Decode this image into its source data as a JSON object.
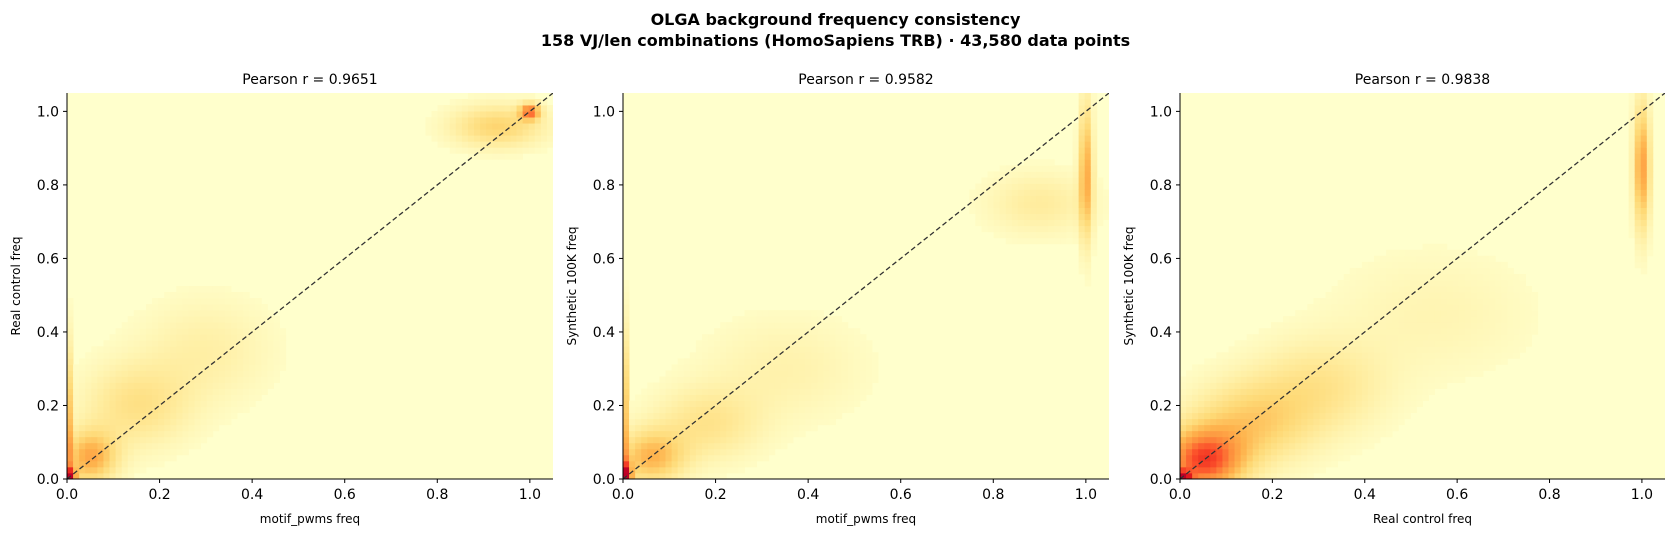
{
  "figure": {
    "title_line1": "OLGA background frequency consistency",
    "title_line2": "158 VJ/len combinations (HomoSapiens TRB)  ·  43,580 data points"
  },
  "chart_data": [
    {
      "type": "heatmap",
      "title": "Pearson r = 0.9651",
      "xlabel": "motif_pwms freq",
      "ylabel": "Real control freq",
      "xlim": [
        0,
        1.05
      ],
      "ylim": [
        0,
        1.05
      ],
      "xticks": [
        "0.0",
        "0.2",
        "0.4",
        "0.6",
        "0.8",
        "1.0"
      ],
      "yticks": [
        "0.0",
        "0.2",
        "0.4",
        "0.6",
        "0.8",
        "1.0"
      ],
      "diagonal_reference": true,
      "density_regions": [
        {
          "x": 0.0,
          "y": 0.0,
          "x_spread": 0.012,
          "y_spread": 0.02,
          "intensity": 1.0
        },
        {
          "x": 0.0,
          "y": 0.15,
          "x_spread": 0.006,
          "y_spread": 0.15,
          "intensity": 0.55
        },
        {
          "x": 0.05,
          "y": 0.06,
          "x_spread": 0.04,
          "y_spread": 0.05,
          "intensity": 0.45
        },
        {
          "x": 0.15,
          "y": 0.2,
          "x_spread": 0.08,
          "y_spread": 0.08,
          "intensity": 0.22
        },
        {
          "x": 0.3,
          "y": 0.35,
          "x_spread": 0.1,
          "y_spread": 0.1,
          "intensity": 0.12
        },
        {
          "x": 0.93,
          "y": 0.96,
          "x_spread": 0.07,
          "y_spread": 0.04,
          "intensity": 0.3
        },
        {
          "x": 1.0,
          "y": 1.0,
          "x_spread": 0.015,
          "y_spread": 0.015,
          "intensity": 0.6
        }
      ]
    },
    {
      "type": "heatmap",
      "title": "Pearson r = 0.9582",
      "xlabel": "motif_pwms freq",
      "ylabel": "Synthetic 100K freq",
      "xlim": [
        0,
        1.05
      ],
      "ylim": [
        0,
        1.05
      ],
      "xticks": [
        "0.0",
        "0.2",
        "0.4",
        "0.6",
        "0.8",
        "1.0"
      ],
      "yticks": [
        "0.0",
        "0.2",
        "0.4",
        "0.6",
        "0.8",
        "1.0"
      ],
      "diagonal_reference": true,
      "density_regions": [
        {
          "x": 0.0,
          "y": 0.0,
          "x_spread": 0.012,
          "y_spread": 0.03,
          "intensity": 1.0
        },
        {
          "x": 0.0,
          "y": 0.18,
          "x_spread": 0.006,
          "y_spread": 0.16,
          "intensity": 0.55
        },
        {
          "x": 0.06,
          "y": 0.06,
          "x_spread": 0.05,
          "y_spread": 0.05,
          "intensity": 0.4
        },
        {
          "x": 0.18,
          "y": 0.15,
          "x_spread": 0.08,
          "y_spread": 0.07,
          "intensity": 0.2
        },
        {
          "x": 0.35,
          "y": 0.3,
          "x_spread": 0.12,
          "y_spread": 0.1,
          "intensity": 0.1
        },
        {
          "x": 1.0,
          "y": 0.84,
          "x_spread": 0.01,
          "y_spread": 0.13,
          "intensity": 0.45
        },
        {
          "x": 0.9,
          "y": 0.75,
          "x_spread": 0.08,
          "y_spread": 0.06,
          "intensity": 0.15
        }
      ]
    },
    {
      "type": "heatmap",
      "title": "Pearson r = 0.9838",
      "xlabel": "Real control freq",
      "ylabel": "Synthetic 100K freq",
      "xlim": [
        0,
        1.05
      ],
      "ylim": [
        0,
        1.05
      ],
      "xticks": [
        "0.0",
        "0.2",
        "0.4",
        "0.6",
        "0.8",
        "1.0"
      ],
      "yticks": [
        "0.0",
        "0.2",
        "0.4",
        "0.6",
        "0.8",
        "1.0"
      ],
      "diagonal_reference": true,
      "density_regions": [
        {
          "x": 0.0,
          "y": 0.0,
          "x_spread": 0.015,
          "y_spread": 0.015,
          "intensity": 1.0
        },
        {
          "x": 0.05,
          "y": 0.05,
          "x_spread": 0.06,
          "y_spread": 0.06,
          "intensity": 0.7
        },
        {
          "x": 0.15,
          "y": 0.15,
          "x_spread": 0.09,
          "y_spread": 0.08,
          "intensity": 0.3
        },
        {
          "x": 0.3,
          "y": 0.25,
          "x_spread": 0.1,
          "y_spread": 0.09,
          "intensity": 0.2
        },
        {
          "x": 0.55,
          "y": 0.45,
          "x_spread": 0.15,
          "y_spread": 0.12,
          "intensity": 0.08
        },
        {
          "x": 1.0,
          "y": 0.85,
          "x_spread": 0.012,
          "y_spread": 0.12,
          "intensity": 0.5
        }
      ]
    }
  ],
  "colors": {
    "background": "#ffffcc",
    "colormap": [
      "#ffffcc",
      "#ffeda0",
      "#fed976",
      "#feb24c",
      "#fd8d3c",
      "#fc4e2a",
      "#e31a1c",
      "#bd0026"
    ],
    "diagonal": "#333333"
  }
}
